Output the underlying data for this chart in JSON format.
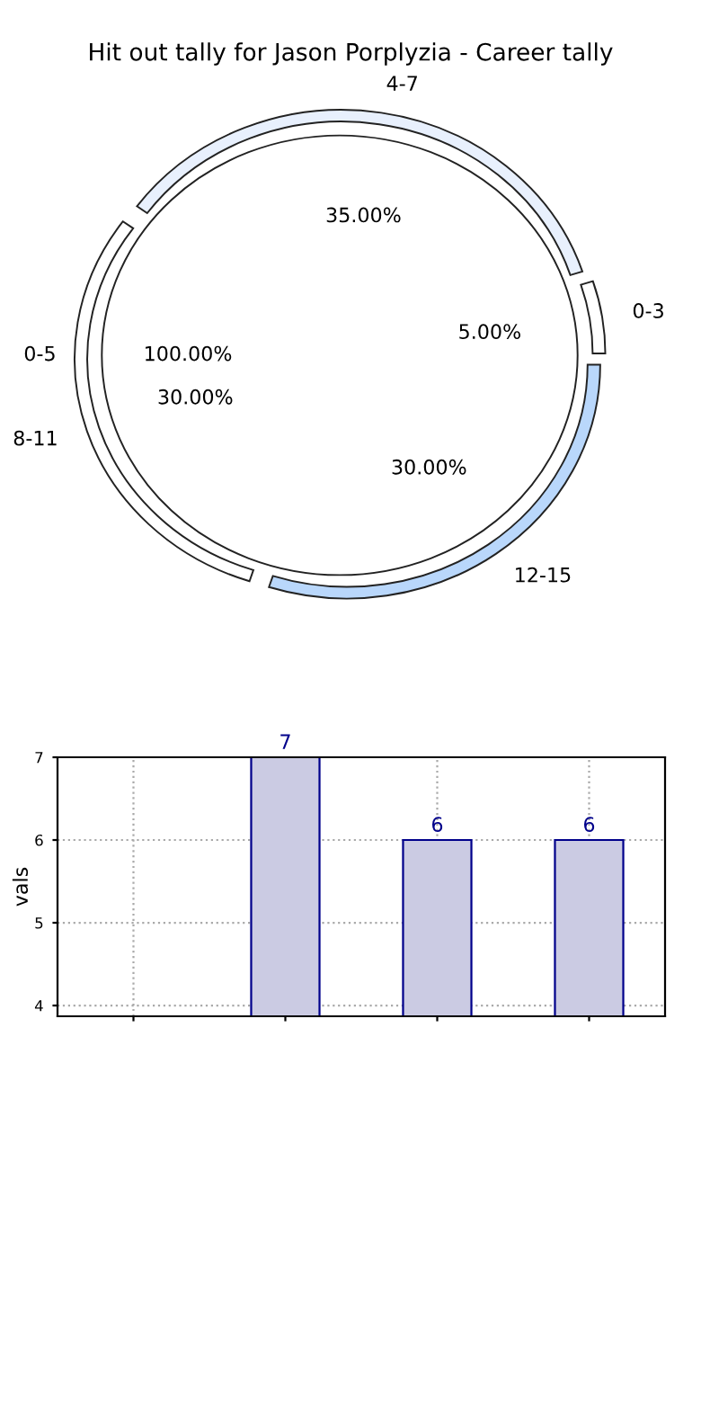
{
  "chart_data": [
    {
      "type": "donut",
      "title": "Hit out tally for Jason Porplyzia - Career tally",
      "categories": [
        "0-3",
        "4-7",
        "8-11",
        "12-15"
      ],
      "values": [
        5,
        35,
        30,
        30
      ],
      "value_labels": [
        "5.00%",
        "35.00%",
        "30.00%",
        "30.00%"
      ],
      "colors": [
        "#ffffff",
        "#e8f0fd",
        "#ffffff",
        "#b9d7fb"
      ]
    },
    {
      "type": "pie",
      "categories": [
        "0-5"
      ],
      "values": [
        100
      ],
      "value_labels": [
        "100.00%"
      ],
      "colors": [
        "#ffffff"
      ]
    },
    {
      "type": "bar",
      "ylabel": "vals",
      "categories": [
        null,
        null,
        null,
        null
      ],
      "values": [
        null,
        7,
        6,
        6
      ],
      "color": "#cbcbe3",
      "ylim": [
        3.87,
        7
      ],
      "yticks": [
        4,
        5,
        6,
        7
      ],
      "grid": true,
      "data_labels": true,
      "tick_labels": "y"
    }
  ]
}
